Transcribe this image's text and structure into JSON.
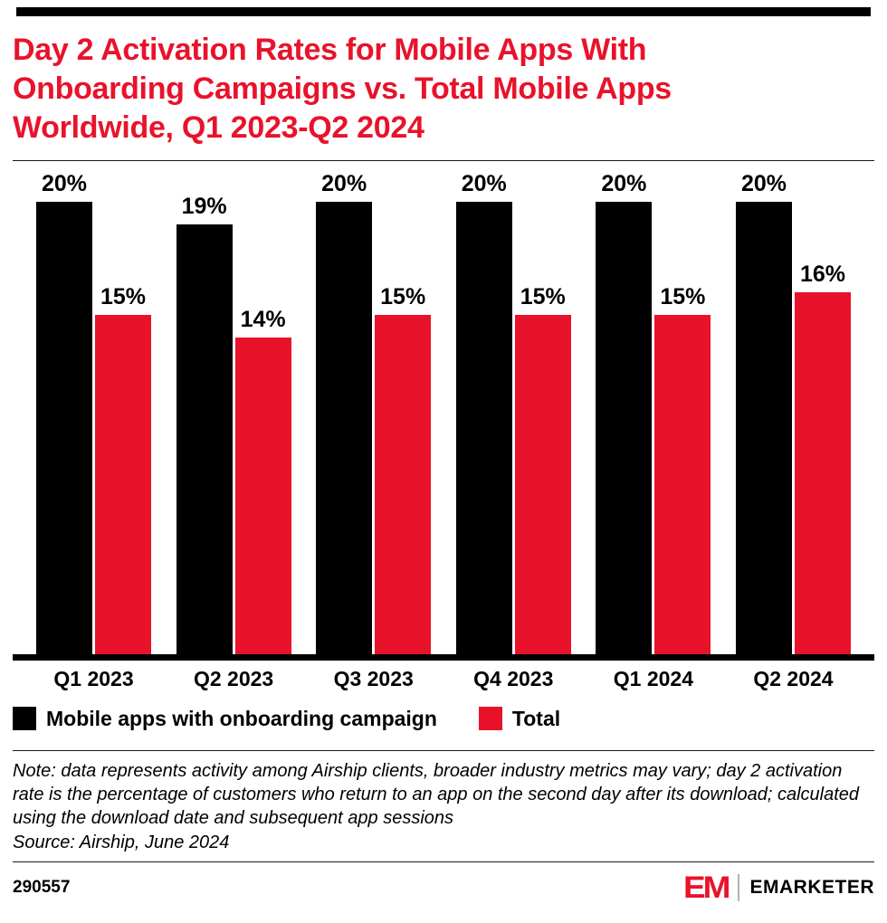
{
  "title": "Day 2 Activation Rates for Mobile Apps With Onboarding Campaigns vs. Total Mobile Apps Worldwide, Q1 2023-Q2 2024",
  "chart_data": {
    "type": "bar",
    "categories": [
      "Q1 2023",
      "Q2 2023",
      "Q3 2023",
      "Q4 2023",
      "Q1 2024",
      "Q2 2024"
    ],
    "series": [
      {
        "name": "Mobile apps with onboarding campaign",
        "color": "#000000",
        "values": [
          20,
          19,
          20,
          20,
          20,
          20
        ]
      },
      {
        "name": "Total",
        "color": "#e8132b",
        "values": [
          15,
          14,
          15,
          15,
          15,
          16
        ]
      }
    ],
    "value_suffix": "%",
    "ylim": [
      0,
      20
    ],
    "grid": false,
    "value_labels": "above-bars",
    "legend_position": "bottom-left"
  },
  "note": {
    "text": "Note: data represents activity among Airship clients, broader industry metrics may vary; day 2 activation rate is the percentage of customers who return to an app on the second day after its download; calculated using the download date and subsequent app sessions",
    "source": "Source: Airship, June 2024"
  },
  "footer": {
    "chart_id": "290557",
    "logo_text": "EM",
    "brand": "EMARKETER"
  },
  "colors": {
    "accent_red": "#e8132b",
    "bar_black": "#000000"
  }
}
